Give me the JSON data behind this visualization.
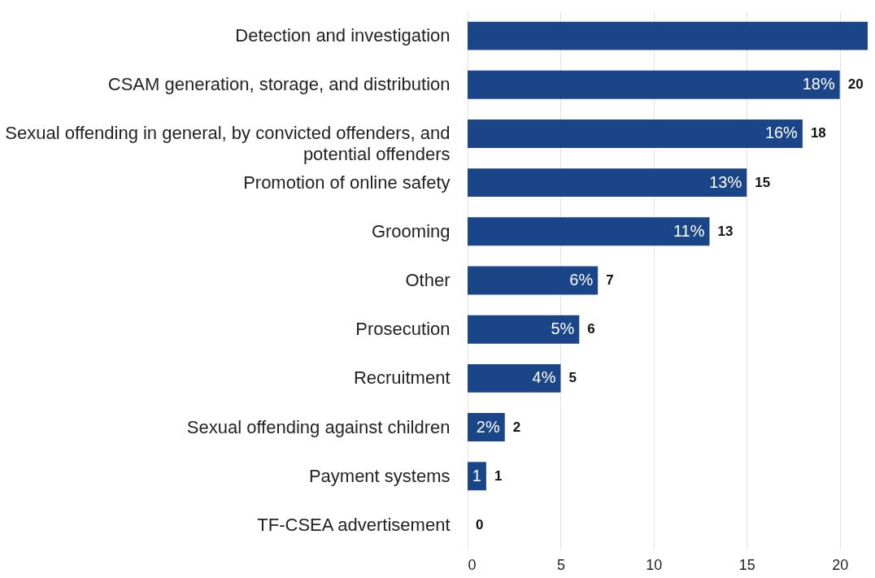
{
  "chart_data": {
    "type": "bar",
    "orientation": "horizontal",
    "categories": [
      "Detection and investigation",
      "CSAM generation, storage, and distribution",
      "Sexual offending in general, by convicted offenders, and potential offenders",
      "Promotion of online safety",
      "Grooming",
      "Other",
      "Prosecution",
      "Recruitment",
      "Sexual offending against children",
      "Payment systems",
      "TF-CSEA advertisement"
    ],
    "values": [
      21.5,
      20,
      18,
      15,
      13,
      7,
      6,
      5,
      2,
      1,
      0
    ],
    "value_labels": [
      null,
      "20",
      "18",
      "15",
      "13",
      "7",
      "6",
      "5",
      "2",
      "1",
      "0"
    ],
    "color": "#1a4589",
    "xlim": [
      0,
      21.5
    ],
    "xticks": [
      0,
      5,
      10,
      15,
      20
    ],
    "grid": "x",
    "annotations": [
      {
        "text": "18%",
        "x": 20,
        "y": "CSAM generation, storage, and distribution"
      },
      {
        "text": "16%",
        "x": 18,
        "y": "Sexual offending in general, by convicted offenders, and potential offenders"
      },
      {
        "text": "13%",
        "x": 15,
        "y": "Promotion of online safety"
      },
      {
        "text": "11%",
        "x": 13,
        "y": "Grooming"
      },
      {
        "text": "6%",
        "x": 7,
        "y": "Other"
      },
      {
        "text": "5%",
        "x": 6,
        "y": "Prosecution"
      },
      {
        "text": "4%",
        "x": 5,
        "y": "Recruitment"
      },
      {
        "text": "2%",
        "x": 2,
        "y": "Sexual offending against children"
      },
      {
        "text": "1",
        "x": 1,
        "y": "Payment systems"
      }
    ]
  }
}
